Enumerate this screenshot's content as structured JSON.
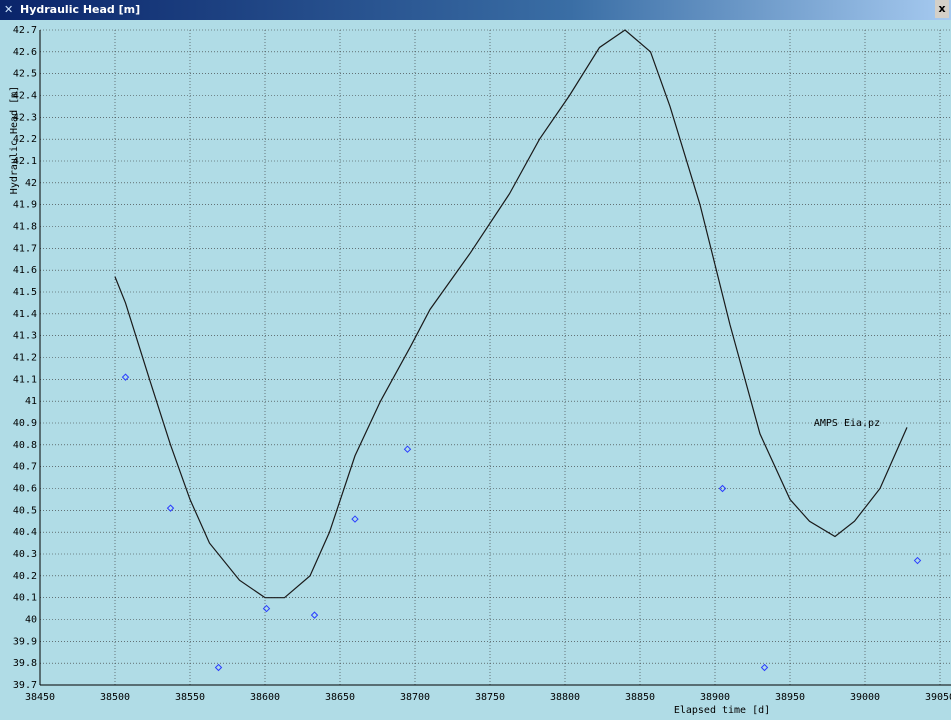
{
  "window_title": "Hydraulic Head [m]",
  "chart_data": {
    "type": "line",
    "xlabel": "Elapsed time [d]",
    "ylabel": "Hydraulic Head [m]",
    "xlim": [
      38450,
      39050
    ],
    "ylim": [
      39.7,
      42.7
    ],
    "xticks": [
      38450,
      38500,
      38550,
      38600,
      38650,
      38700,
      38750,
      38800,
      38850,
      38900,
      38950,
      39000,
      39050
    ],
    "yticks": [
      39.7,
      39.8,
      39.9,
      40,
      40.1,
      40.2,
      40.3,
      40.4,
      40.5,
      40.6,
      40.7,
      40.8,
      40.9,
      41,
      41.1,
      41.2,
      41.3,
      41.4,
      41.5,
      41.6,
      41.7,
      41.8,
      41.9,
      42,
      42.1,
      42.2,
      42.3,
      42.4,
      42.5,
      42.6,
      42.7
    ],
    "grid": true,
    "series": [
      {
        "type": "line",
        "color": "#1a1a1a",
        "x": [
          38500,
          38507,
          38523,
          38537,
          38550,
          38563,
          38583,
          38600,
          38613,
          38630,
          38643,
          38660,
          38677,
          38697,
          38710,
          38737,
          38763,
          38783,
          38803,
          38823,
          38840,
          38857,
          38870,
          38890,
          38910,
          38930,
          38950,
          38963,
          38980,
          38993,
          39010,
          39028
        ],
        "values": [
          41.57,
          41.45,
          41.1,
          40.8,
          40.55,
          40.35,
          40.18,
          40.1,
          40.1,
          40.2,
          40.4,
          40.75,
          41.0,
          41.25,
          41.42,
          41.68,
          41.95,
          42.2,
          42.4,
          42.62,
          42.7,
          42.6,
          42.35,
          41.9,
          41.35,
          40.85,
          40.55,
          40.45,
          40.38,
          40.45,
          40.6,
          40.88
        ]
      },
      {
        "type": "scatter",
        "color": "#2a3cff",
        "x": [
          38507,
          38537,
          38569,
          38601,
          38633,
          38660,
          38695,
          38905,
          38933,
          39035
        ],
        "values": [
          41.11,
          40.51,
          39.78,
          40.05,
          40.02,
          40.46,
          40.78,
          40.6,
          39.78,
          40.27
        ]
      }
    ],
    "annotations": [
      {
        "text": "AMPS Eia.pz",
        "x": 38988,
        "y": 40.9
      }
    ]
  }
}
